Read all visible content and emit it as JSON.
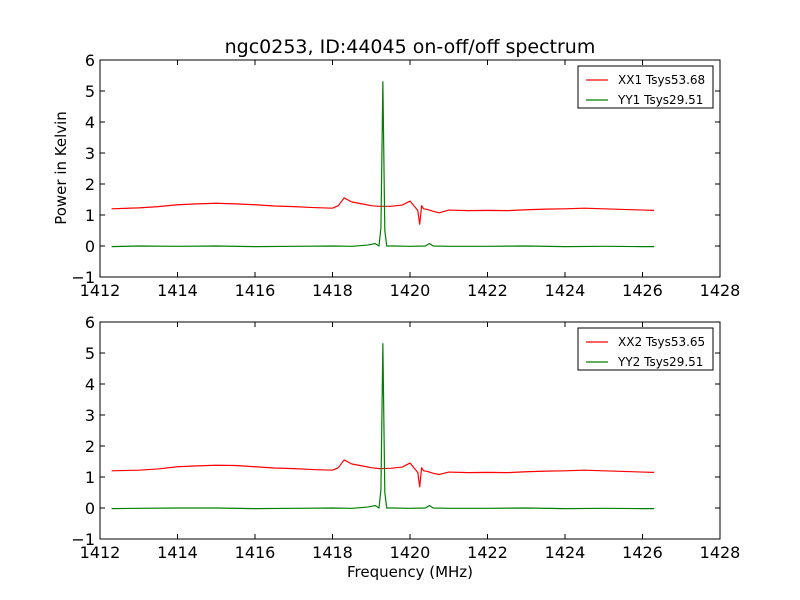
{
  "chart_data": {
    "title": "ngc0253, ID:44045 on-off/off spectrum",
    "xlabel": "Frequency (MHz)",
    "ylabel": "Power in Kelvin",
    "colors": {
      "xx": "#ff0000",
      "yy": "#008000"
    },
    "panels": [
      {
        "type": "line",
        "xlim": [
          1412,
          1428
        ],
        "ylim": [
          -1,
          6
        ],
        "xticks": [
          1412,
          1414,
          1416,
          1418,
          1420,
          1422,
          1424,
          1426,
          1428
        ],
        "yticks": [
          -1,
          0,
          1,
          2,
          3,
          4,
          5,
          6
        ],
        "legend_position": "top-right",
        "series": [
          {
            "name": "XX1 Tsys53.68",
            "color": "#ff0000",
            "x": [
              1412.3,
              1413.0,
              1413.5,
              1414.0,
              1414.5,
              1415.0,
              1415.5,
              1416.0,
              1416.5,
              1417.0,
              1417.5,
              1418.0,
              1418.15,
              1418.3,
              1418.5,
              1418.8,
              1419.0,
              1419.2,
              1419.5,
              1419.8,
              1420.0,
              1420.1,
              1420.2,
              1420.25,
              1420.3,
              1420.35,
              1420.45,
              1420.6,
              1420.75,
              1421.0,
              1421.5,
              1422.0,
              1422.5,
              1423.0,
              1423.5,
              1424.0,
              1424.5,
              1425.0,
              1425.5,
              1426.0,
              1426.3
            ],
            "y": [
              1.2,
              1.23,
              1.27,
              1.33,
              1.36,
              1.38,
              1.36,
              1.33,
              1.29,
              1.27,
              1.24,
              1.22,
              1.3,
              1.55,
              1.42,
              1.35,
              1.3,
              1.28,
              1.28,
              1.32,
              1.45,
              1.3,
              1.15,
              0.7,
              1.3,
              1.2,
              1.18,
              1.12,
              1.07,
              1.16,
              1.14,
              1.15,
              1.14,
              1.17,
              1.19,
              1.2,
              1.22,
              1.2,
              1.18,
              1.16,
              1.15
            ]
          },
          {
            "name": "YY1 Tsys29.51",
            "color": "#008000",
            "x": [
              1412.3,
              1413.0,
              1414.0,
              1415.0,
              1416.0,
              1417.0,
              1418.0,
              1418.5,
              1418.9,
              1419.0,
              1419.1,
              1419.2,
              1419.25,
              1419.3,
              1419.35,
              1419.4,
              1419.6,
              1420.0,
              1420.4,
              1420.5,
              1420.6,
              1421.0,
              1422.0,
              1423.0,
              1424.0,
              1425.0,
              1426.0,
              1426.3
            ],
            "y": [
              -0.02,
              0.0,
              -0.01,
              0.0,
              -0.02,
              -0.01,
              0.0,
              -0.01,
              0.03,
              0.05,
              0.08,
              0.0,
              0.6,
              5.3,
              0.5,
              0.0,
              0.0,
              -0.01,
              0.0,
              0.08,
              0.0,
              -0.01,
              -0.01,
              0.0,
              -0.02,
              -0.01,
              -0.02,
              -0.02
            ]
          }
        ]
      },
      {
        "type": "line",
        "xlim": [
          1412,
          1428
        ],
        "ylim": [
          -1,
          6
        ],
        "xticks": [
          1412,
          1414,
          1416,
          1418,
          1420,
          1422,
          1424,
          1426,
          1428
        ],
        "yticks": [
          -1,
          0,
          1,
          2,
          3,
          4,
          5,
          6
        ],
        "legend_position": "top-right",
        "series": [
          {
            "name": "XX2 Tsys53.65",
            "color": "#ff0000",
            "x": [
              1412.3,
              1413.0,
              1413.5,
              1414.0,
              1414.5,
              1415.0,
              1415.5,
              1416.0,
              1416.5,
              1417.0,
              1417.5,
              1418.0,
              1418.15,
              1418.3,
              1418.5,
              1418.8,
              1419.0,
              1419.2,
              1419.5,
              1419.8,
              1420.0,
              1420.1,
              1420.2,
              1420.25,
              1420.3,
              1420.35,
              1420.45,
              1420.6,
              1420.75,
              1421.0,
              1421.5,
              1422.0,
              1422.5,
              1423.0,
              1423.5,
              1424.0,
              1424.5,
              1425.0,
              1425.5,
              1426.0,
              1426.3
            ],
            "y": [
              1.2,
              1.22,
              1.26,
              1.33,
              1.36,
              1.38,
              1.37,
              1.33,
              1.29,
              1.27,
              1.24,
              1.22,
              1.3,
              1.55,
              1.42,
              1.35,
              1.3,
              1.27,
              1.28,
              1.32,
              1.45,
              1.3,
              1.15,
              0.68,
              1.3,
              1.2,
              1.18,
              1.12,
              1.08,
              1.16,
              1.14,
              1.15,
              1.14,
              1.17,
              1.19,
              1.2,
              1.22,
              1.2,
              1.18,
              1.16,
              1.15
            ]
          },
          {
            "name": "YY2 Tsys29.51",
            "color": "#008000",
            "x": [
              1412.3,
              1413.0,
              1414.0,
              1415.0,
              1416.0,
              1417.0,
              1418.0,
              1418.5,
              1418.9,
              1419.0,
              1419.1,
              1419.2,
              1419.25,
              1419.3,
              1419.35,
              1419.4,
              1419.6,
              1420.0,
              1420.4,
              1420.5,
              1420.6,
              1421.0,
              1422.0,
              1423.0,
              1424.0,
              1425.0,
              1426.0,
              1426.3
            ],
            "y": [
              -0.02,
              -0.01,
              0.0,
              0.0,
              -0.02,
              -0.01,
              0.0,
              -0.01,
              0.03,
              0.05,
              0.08,
              0.0,
              0.6,
              5.3,
              0.5,
              0.0,
              0.0,
              -0.01,
              0.0,
              0.08,
              0.0,
              -0.01,
              -0.01,
              0.0,
              -0.02,
              -0.01,
              -0.02,
              -0.02
            ]
          }
        ]
      }
    ]
  }
}
